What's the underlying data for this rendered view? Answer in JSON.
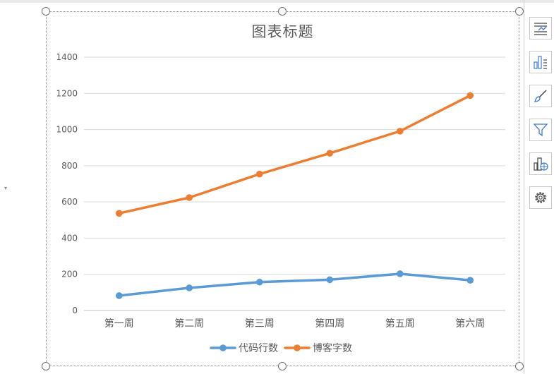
{
  "chart_data": {
    "type": "line",
    "title": "图表标题",
    "categories": [
      "第一周",
      "第二周",
      "第三周",
      "第四周",
      "第五周",
      "第六周"
    ],
    "y_ticks": [
      "0",
      "200",
      "400",
      "600",
      "800",
      "1000",
      "1200",
      "1400"
    ],
    "ylim": [
      0,
      1400
    ],
    "grid": true,
    "legend_position": "bottom",
    "series": [
      {
        "name": "代码行数",
        "color": "#5b9bd5",
        "values": [
          82,
          125,
          157,
          170,
          203,
          167
        ]
      },
      {
        "name": "博客字数",
        "color": "#ed7d31",
        "values": [
          537,
          624,
          754,
          869,
          991,
          1188
        ]
      }
    ]
  },
  "side_toolbar": {
    "icons": [
      "chart-elements-icon",
      "chart-styles-icon",
      "chart-brush-icon",
      "chart-filter-icon",
      "chart-online-icon",
      "chart-settings-icon"
    ]
  }
}
